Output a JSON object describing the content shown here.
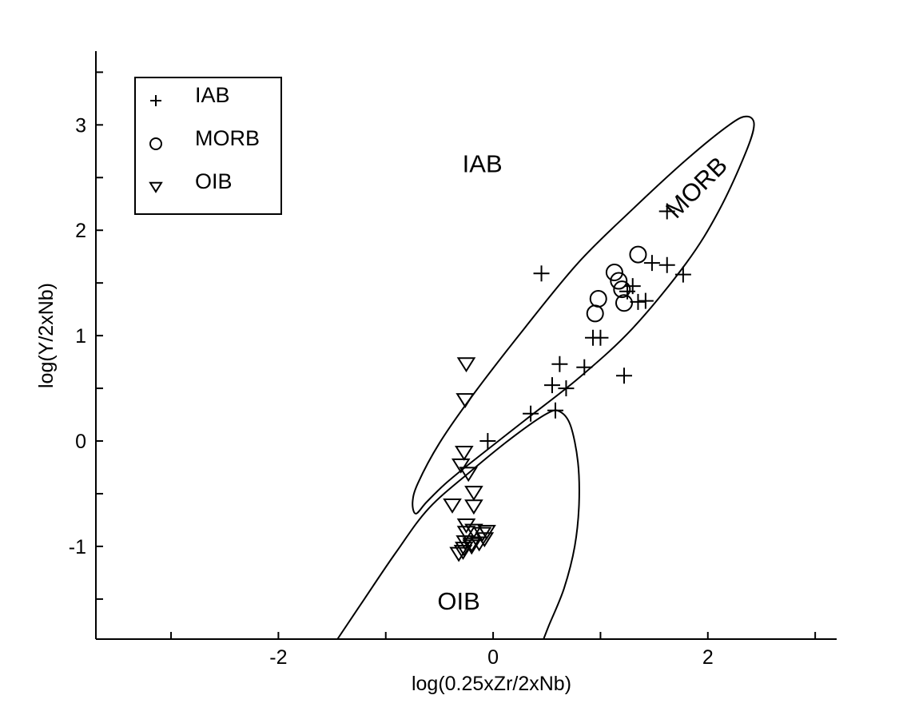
{
  "chart_data": {
    "type": "scatter",
    "xlabel": "log(0.25xZr/2xNb)",
    "ylabel": "log(Y/2xNb)",
    "xlim": [
      -3.7,
      3.2
    ],
    "ylim": [
      -1.88,
      3.7
    ],
    "x_ticks": [
      -2,
      0,
      2
    ],
    "x_tick_labels": [
      "-2",
      "0",
      "2"
    ],
    "y_ticks": [
      -1,
      0,
      1,
      2,
      3
    ],
    "y_tick_labels": [
      "-1",
      "0",
      "1",
      "2",
      "3"
    ],
    "x_minor_ticks": [
      -3,
      -1,
      1,
      3
    ],
    "y_minor_ticks": [
      -1.5,
      -0.5,
      0.5,
      1.5,
      2.5,
      3.5
    ],
    "grid": false,
    "legend_position": "top-left",
    "legend": [
      {
        "label": "IAB",
        "marker": "plus"
      },
      {
        "label": "MORB",
        "marker": "circle"
      },
      {
        "label": "OIB",
        "marker": "triangle-down"
      }
    ],
    "region_labels": [
      {
        "text": "IAB",
        "x": -0.1,
        "y": 2.55
      },
      {
        "text": "MORB",
        "x": 1.95,
        "y": 2.35,
        "rotation": -45
      },
      {
        "text": "OIB",
        "x": -0.32,
        "y": -1.6
      }
    ],
    "series": [
      {
        "name": "IAB",
        "marker": "plus",
        "points": [
          [
            0.45,
            1.59
          ],
          [
            -0.05,
            0.0
          ],
          [
            0.35,
            0.26
          ],
          [
            0.58,
            0.29
          ],
          [
            0.55,
            0.53
          ],
          [
            0.62,
            0.73
          ],
          [
            0.68,
            0.5
          ],
          [
            0.85,
            0.7
          ],
          [
            0.93,
            0.98
          ],
          [
            1.0,
            0.98
          ],
          [
            1.22,
            0.62
          ],
          [
            1.25,
            1.42
          ],
          [
            1.3,
            1.47
          ],
          [
            1.35,
            1.32
          ],
          [
            1.42,
            1.33
          ],
          [
            1.48,
            1.69
          ],
          [
            1.62,
            1.67
          ],
          [
            1.62,
            2.18
          ],
          [
            1.77,
            1.58
          ]
        ]
      },
      {
        "name": "MORB",
        "marker": "circle",
        "points": [
          [
            0.95,
            1.21
          ],
          [
            0.98,
            1.35
          ],
          [
            1.13,
            1.6
          ],
          [
            1.17,
            1.52
          ],
          [
            1.2,
            1.44
          ],
          [
            1.22,
            1.31
          ],
          [
            1.35,
            1.77
          ]
        ]
      },
      {
        "name": "OIB",
        "marker": "triangle-down",
        "points": [
          [
            -0.25,
            0.73
          ],
          [
            -0.26,
            0.39
          ],
          [
            -0.27,
            -0.11
          ],
          [
            -0.3,
            -0.23
          ],
          [
            -0.23,
            -0.31
          ],
          [
            -0.18,
            -0.49
          ],
          [
            -0.18,
            -0.62
          ],
          [
            -0.38,
            -0.61
          ],
          [
            -0.25,
            -0.8
          ],
          [
            -0.25,
            -0.87
          ],
          [
            -0.18,
            -0.85
          ],
          [
            -0.1,
            -0.88
          ],
          [
            -0.06,
            -0.86
          ],
          [
            -0.26,
            -0.96
          ],
          [
            -0.2,
            -0.98
          ],
          [
            -0.13,
            -0.97
          ],
          [
            -0.08,
            -0.93
          ],
          [
            -0.27,
            -1.02
          ],
          [
            -0.32,
            -1.07
          ],
          [
            -0.28,
            -1.05
          ],
          [
            -0.2,
            -1.0
          ]
        ]
      }
    ],
    "boundaries": [
      {
        "name": "MORB-field",
        "closed": true,
        "points": [
          [
            -0.72,
            -0.69
          ],
          [
            -0.62,
            -0.58
          ],
          [
            -0.45,
            -0.41
          ],
          [
            -0.2,
            -0.2
          ],
          [
            0.3,
            0.2
          ],
          [
            0.8,
            0.6
          ],
          [
            1.3,
            1.07
          ],
          [
            1.8,
            1.69
          ],
          [
            2.1,
            2.18
          ],
          [
            2.35,
            2.73
          ],
          [
            2.43,
            3.0
          ],
          [
            2.36,
            3.08
          ],
          [
            2.2,
            3.0
          ],
          [
            1.8,
            2.67
          ],
          [
            1.3,
            2.2
          ],
          [
            0.8,
            1.7
          ],
          [
            0.3,
            1.08
          ],
          [
            -0.2,
            0.42
          ],
          [
            -0.5,
            -0.02
          ],
          [
            -0.7,
            -0.4
          ],
          [
            -0.75,
            -0.58
          ],
          [
            -0.72,
            -0.69
          ]
        ]
      },
      {
        "name": "OIB-field",
        "closed": false,
        "points": [
          [
            -1.45,
            -1.88
          ],
          [
            -1.2,
            -1.5
          ],
          [
            -0.9,
            -1.05
          ],
          [
            -0.6,
            -0.64
          ],
          [
            -0.2,
            -0.28
          ],
          [
            0.2,
            0.05
          ],
          [
            0.5,
            0.26
          ],
          [
            0.62,
            0.28
          ],
          [
            0.72,
            0.15
          ],
          [
            0.79,
            -0.2
          ],
          [
            0.8,
            -0.6
          ],
          [
            0.76,
            -1.0
          ],
          [
            0.66,
            -1.4
          ],
          [
            0.52,
            -1.75
          ],
          [
            0.47,
            -1.88
          ]
        ]
      }
    ]
  }
}
